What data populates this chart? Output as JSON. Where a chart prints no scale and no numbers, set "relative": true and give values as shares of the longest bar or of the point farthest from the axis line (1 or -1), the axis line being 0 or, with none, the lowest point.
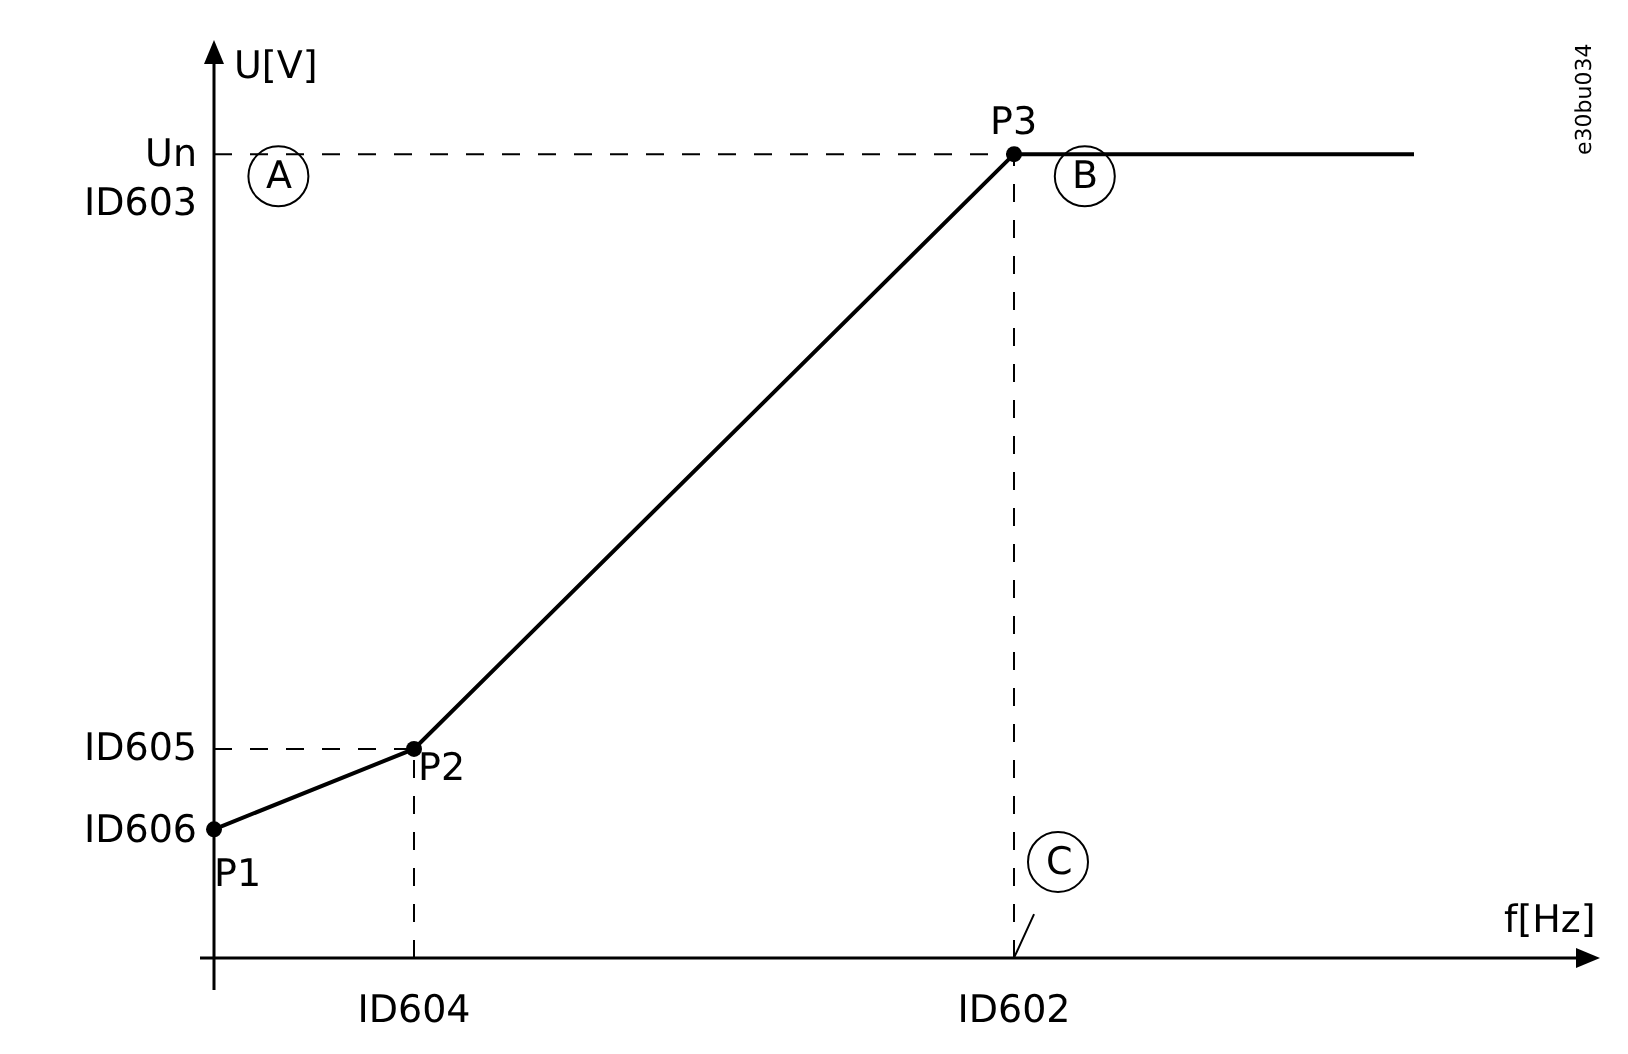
{
  "chart_data": {
    "type": "line",
    "relative": true,
    "xlabel": "f[Hz]",
    "ylabel": "U[V]",
    "grid": false,
    "categories": [
      null,
      null,
      null,
      null,
      null,
      "ID604",
      null,
      null,
      null,
      null,
      null,
      null,
      null,
      null,
      null,
      null,
      null,
      null,
      null,
      null,
      "ID602",
      null,
      null,
      null,
      null,
      null,
      null,
      null,
      null,
      null,
      null
    ],
    "series": [
      {
        "color": "#000000",
        "line_style": "dashed",
        "values": [
          1,
          null,
          null,
          null,
          null,
          null,
          null,
          null,
          null,
          null,
          null,
          null,
          null,
          null,
          null,
          null,
          null,
          null,
          null,
          null,
          1,
          null,
          null,
          null,
          null,
          null,
          null,
          null,
          null,
          null,
          null
        ]
      },
      {
        "color": "#000000",
        "line_style": "dashed",
        "values": [
          0.26,
          null,
          null,
          null,
          null,
          0.26,
          null,
          null,
          null,
          null,
          null,
          null,
          null,
          null,
          null,
          null,
          null,
          null,
          null,
          null,
          null,
          null,
          null,
          null,
          null,
          null,
          null,
          null,
          null,
          null,
          null
        ]
      },
      {
        "color": "#000000",
        "line_style": "dashed",
        "x": [
          "ID604",
          "ID604"
        ],
        "values": [
          0,
          0.26
        ]
      },
      {
        "color": "#000000",
        "line_style": "dashed",
        "x": [
          "ID602",
          "ID602"
        ],
        "values": [
          0,
          1
        ]
      },
      {
        "color": "#000000",
        "line_style": "solid",
        "values": [
          0.16,
          null,
          null,
          null,
          null,
          0.26,
          null,
          null,
          null,
          null,
          null,
          null,
          null,
          null,
          null,
          null,
          null,
          null,
          null,
          null,
          1,
          null,
          null,
          null,
          null,
          null,
          null,
          null,
          null,
          null,
          1
        ]
      },
      {
        "type": "scatter",
        "color": "#000000",
        "marker": "circle",
        "values": [
          0.16,
          null,
          null,
          null,
          null,
          0.26,
          null,
          null,
          null,
          null,
          null,
          null,
          null,
          null,
          null,
          null,
          null,
          null,
          null,
          null,
          1,
          null,
          null,
          null,
          null,
          null,
          null,
          null,
          null,
          null,
          null
        ]
      }
    ],
    "annotations": [
      "Un\nID603",
      "ID605",
      "ID606",
      {
        "text": "P1",
        "y": 0.16
      },
      {
        "text": "P2",
        "x": "ID604",
        "y": 0.26
      },
      {
        "text": "P3",
        "x": "ID602",
        "y": 1
      },
      "A",
      "B",
      {
        "text": "C",
        "x": "ID602",
        "y": 0
      },
      "e30bu034"
    ]
  }
}
